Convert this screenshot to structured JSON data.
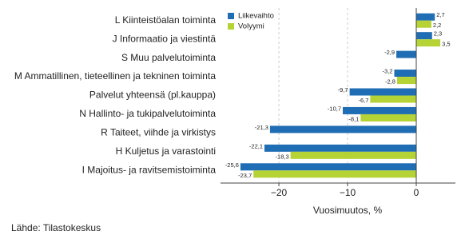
{
  "chart_data": {
    "type": "bar",
    "orientation": "horizontal",
    "categories": [
      "L Kiinteistöalan toiminta",
      "J Informaatio ja viestintä",
      "S Muu palvelutoiminta",
      "M Ammatillinen, tieteellinen ja tekninen toiminta",
      "Palvelut yhteensä (pl.kauppa)",
      "N Hallinto- ja tukipalvelutoiminta",
      "R Taiteet, viihde ja virkistys",
      "H Kuljetus ja varastointi",
      "I Majoitus- ja ravitsemistoiminta"
    ],
    "series": [
      {
        "name": "Liikevaihto",
        "color": "#1f6db4",
        "values": [
          2.7,
          2.3,
          -2.9,
          -3.2,
          -9.7,
          -10.7,
          -21.3,
          -22.1,
          -25.6
        ],
        "value_labels": [
          "2,7",
          "2,3",
          "-2,9",
          "-3,2",
          "-9,7",
          "-10,7",
          "-21,3",
          "-22,1",
          "-25,6"
        ]
      },
      {
        "name": "Volyymi",
        "color": "#b5d334",
        "values": [
          2.2,
          3.5,
          null,
          -2.8,
          -6.7,
          -8.1,
          null,
          -18.3,
          -23.7
        ],
        "value_labels": [
          "2,2",
          "3,5",
          null,
          "-2,8",
          "-6,7",
          "-8,1",
          null,
          "-18,3",
          "-23,7"
        ]
      }
    ],
    "xlabel": "Vuosimuutos, %",
    "xlim": [
      -28.5,
      5.7
    ],
    "xticks": [
      {
        "value": -20,
        "label": "−20"
      },
      {
        "value": -10,
        "label": "−10"
      },
      0
    ],
    "grid": true,
    "legend": "top-left",
    "source": "Lähde: Tilastokeskus"
  }
}
